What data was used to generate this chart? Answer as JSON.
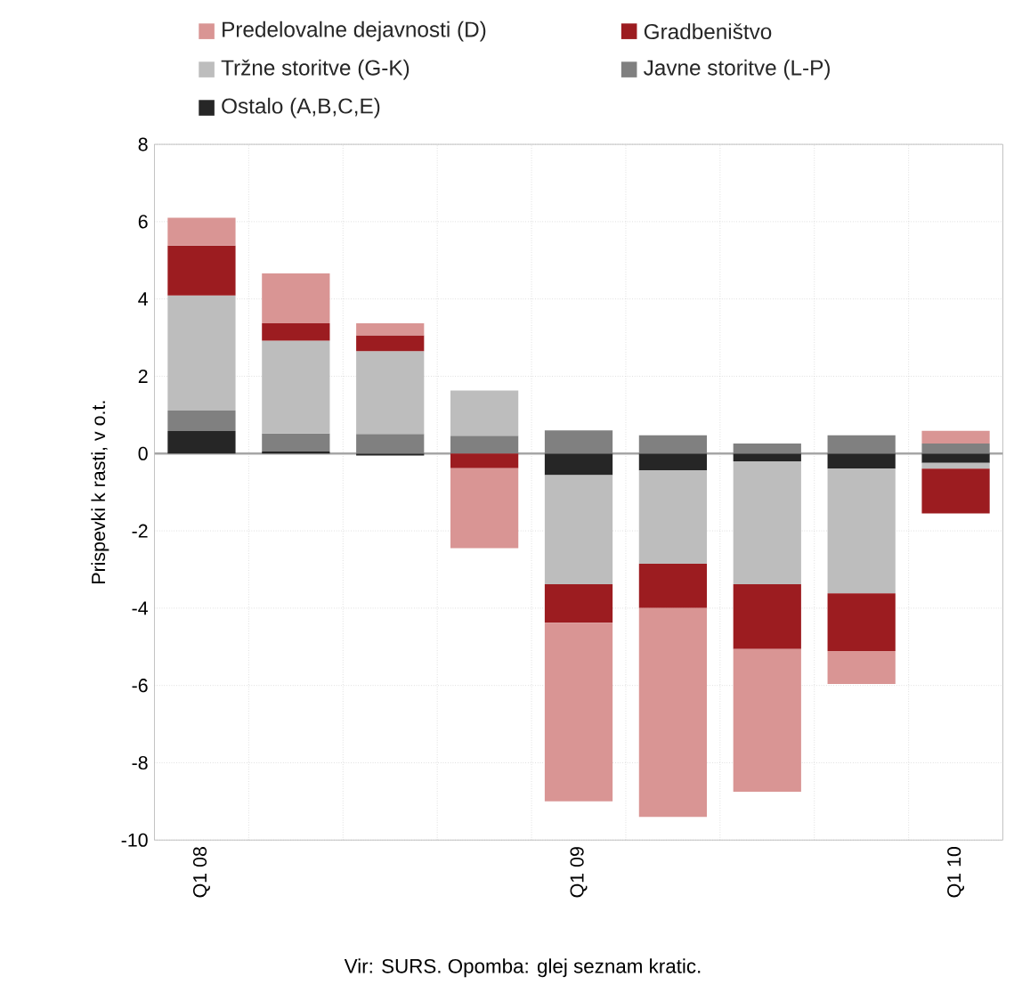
{
  "chart_data": {
    "type": "bar",
    "stacked": true,
    "ylabel": "Prispevki k rasti, v o.t.",
    "annotations": [
      "Vir: SURS. Opomba: glej seznam kratic."
    ],
    "categories": [
      "Q1 08",
      null,
      null,
      null,
      "Q1 09",
      null,
      null,
      null,
      "Q1 10"
    ],
    "series": [
      {
        "name": "Ostalo (A,B,C,E)",
        "color": "#262626",
        "values": [
          0.58,
          0.05,
          -0.05,
          0,
          -0.56,
          -0.44,
          -0.2,
          -0.39,
          -0.24
        ]
      },
      {
        "name": "Javne storitve (L-P)",
        "color": "#808080",
        "values": [
          0.53,
          0.47,
          0.51,
          0.46,
          0.6,
          0.47,
          0.26,
          0.47,
          0.26
        ]
      },
      {
        "name": "Tržne storitve (G-K)",
        "color": "#bdbdbd",
        "values": [
          2.98,
          2.4,
          2.14,
          1.17,
          -2.82,
          -2.41,
          -3.18,
          -3.23,
          -0.15
        ]
      },
      {
        "name": "Gradbeništvo",
        "color": "#9c1c20",
        "values": [
          1.29,
          0.45,
          0.41,
          -0.38,
          -1.0,
          -1.15,
          -1.68,
          -1.49,
          -1.16
        ]
      },
      {
        "name": "Predelovalne dejavnosti (D)",
        "color": "#d99594",
        "values": [
          0.72,
          1.29,
          0.31,
          -2.07,
          -4.62,
          -5.4,
          -3.69,
          -0.85,
          0.33
        ]
      }
    ],
    "ylim": [
      -10,
      8
    ],
    "yticks": [
      -10,
      -8,
      -6,
      -4,
      -2,
      0,
      2,
      4,
      6,
      8
    ],
    "grid": true,
    "legend": "top"
  }
}
